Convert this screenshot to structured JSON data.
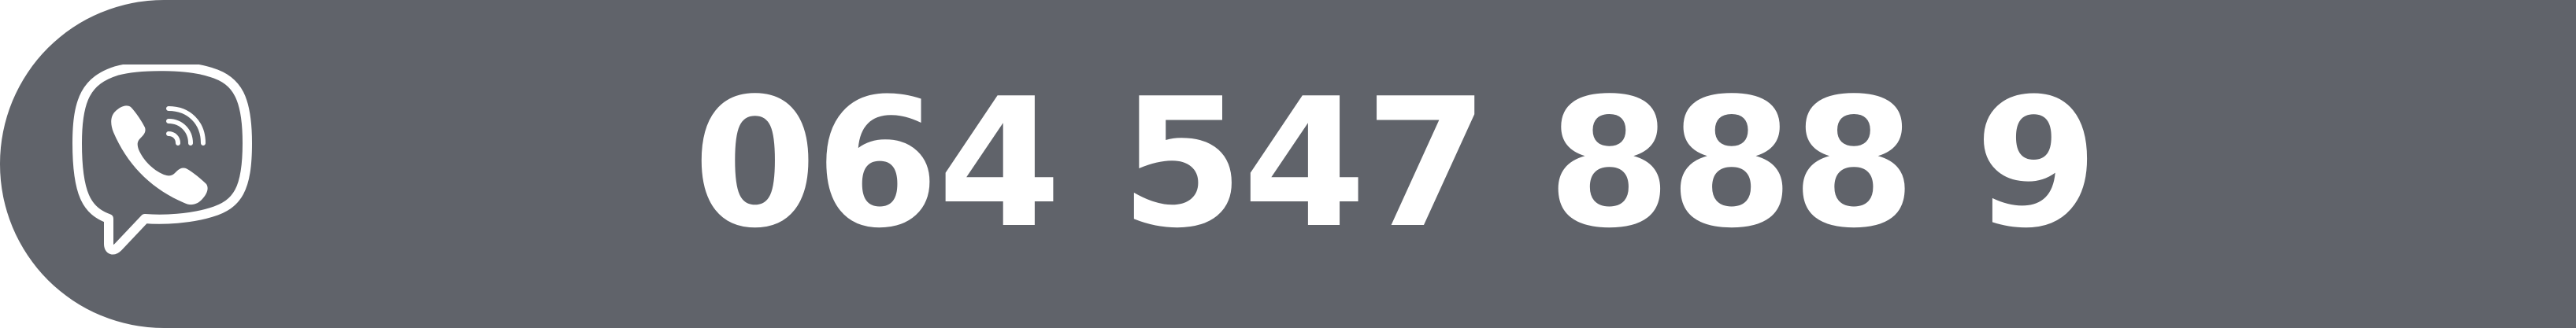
{
  "contact": {
    "icon": "viber-icon",
    "phone_number": "064 547 888 9"
  },
  "colors": {
    "background": "#60636a",
    "foreground": "#ffffff"
  }
}
